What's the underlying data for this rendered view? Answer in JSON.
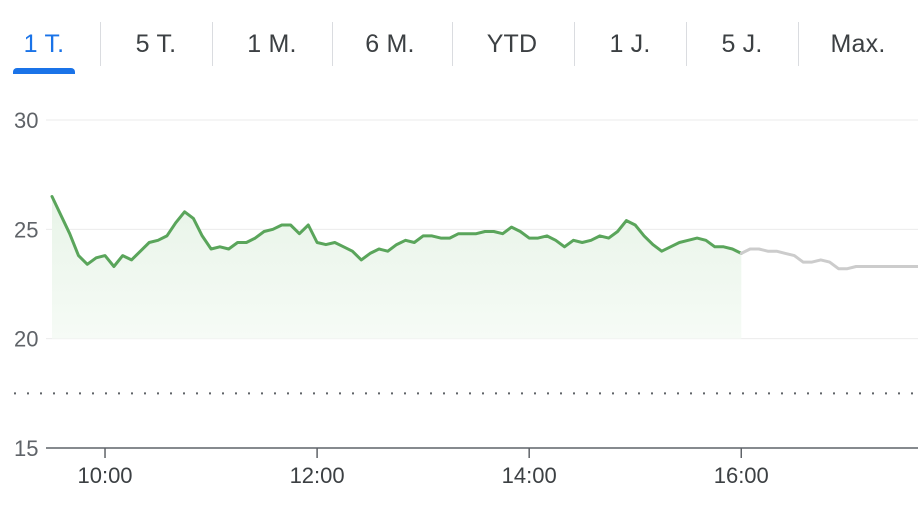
{
  "tabs": [
    {
      "label": "1 T.",
      "active": true
    },
    {
      "label": "5 T.",
      "active": false
    },
    {
      "label": "1 M.",
      "active": false
    },
    {
      "label": "6 M.",
      "active": false
    },
    {
      "label": "YTD",
      "active": false
    },
    {
      "label": "1 J.",
      "active": false
    },
    {
      "label": "5 J.",
      "active": false
    },
    {
      "label": "Max.",
      "active": false
    }
  ],
  "colors": {
    "line": "#5aa55b",
    "fill": "#e8f4e8",
    "projection": "#cccccc",
    "accent": "#1a73e8",
    "grid": "#ebebeb",
    "axis": "#5f6368"
  },
  "chart_data": {
    "type": "line",
    "ylim": [
      15,
      30
    ],
    "xlim": [
      "09:30",
      "17:40"
    ],
    "yticks": [
      "30",
      "25",
      "20",
      "15"
    ],
    "xticks": [
      "10:00",
      "12:00",
      "14:00",
      "16:00"
    ],
    "previous_close": 17.5,
    "grid": true,
    "series": [
      {
        "style": "actual",
        "points": [
          [
            "09:30",
            26.5
          ],
          [
            "09:40",
            24.8
          ],
          [
            "09:45",
            23.8
          ],
          [
            "09:50",
            23.4
          ],
          [
            "09:55",
            23.7
          ],
          [
            "10:00",
            23.8
          ],
          [
            "10:05",
            23.3
          ],
          [
            "10:10",
            23.8
          ],
          [
            "10:15",
            23.6
          ],
          [
            "10:20",
            24.0
          ],
          [
            "10:25",
            24.4
          ],
          [
            "10:30",
            24.5
          ],
          [
            "10:35",
            24.7
          ],
          [
            "10:40",
            25.3
          ],
          [
            "10:45",
            25.8
          ],
          [
            "10:50",
            25.5
          ],
          [
            "10:55",
            24.7
          ],
          [
            "11:00",
            24.1
          ],
          [
            "11:05",
            24.2
          ],
          [
            "11:10",
            24.1
          ],
          [
            "11:15",
            24.4
          ],
          [
            "11:20",
            24.4
          ],
          [
            "11:25",
            24.6
          ],
          [
            "11:30",
            24.9
          ],
          [
            "11:35",
            25.0
          ],
          [
            "11:40",
            25.2
          ],
          [
            "11:45",
            25.2
          ],
          [
            "11:50",
            24.8
          ],
          [
            "11:55",
            25.2
          ],
          [
            "12:00",
            24.4
          ],
          [
            "12:05",
            24.3
          ],
          [
            "12:10",
            24.4
          ],
          [
            "12:15",
            24.2
          ],
          [
            "12:20",
            24.0
          ],
          [
            "12:25",
            23.6
          ],
          [
            "12:30",
            23.9
          ],
          [
            "12:35",
            24.1
          ],
          [
            "12:40",
            24.0
          ],
          [
            "12:45",
            24.3
          ],
          [
            "12:50",
            24.5
          ],
          [
            "12:55",
            24.4
          ],
          [
            "13:00",
            24.7
          ],
          [
            "13:05",
            24.7
          ],
          [
            "13:10",
            24.6
          ],
          [
            "13:15",
            24.6
          ],
          [
            "13:20",
            24.8
          ],
          [
            "13:25",
            24.8
          ],
          [
            "13:30",
            24.8
          ],
          [
            "13:35",
            24.9
          ],
          [
            "13:40",
            24.9
          ],
          [
            "13:45",
            24.8
          ],
          [
            "13:50",
            25.1
          ],
          [
            "13:55",
            24.9
          ],
          [
            "14:00",
            24.6
          ],
          [
            "14:05",
            24.6
          ],
          [
            "14:10",
            24.7
          ],
          [
            "14:15",
            24.5
          ],
          [
            "14:20",
            24.2
          ],
          [
            "14:25",
            24.5
          ],
          [
            "14:30",
            24.4
          ],
          [
            "14:35",
            24.5
          ],
          [
            "14:40",
            24.7
          ],
          [
            "14:45",
            24.6
          ],
          [
            "14:50",
            24.9
          ],
          [
            "14:55",
            25.4
          ],
          [
            "15:00",
            25.2
          ],
          [
            "15:05",
            24.7
          ],
          [
            "15:10",
            24.3
          ],
          [
            "15:15",
            24.0
          ],
          [
            "15:20",
            24.2
          ],
          [
            "15:25",
            24.4
          ],
          [
            "15:30",
            24.5
          ],
          [
            "15:35",
            24.6
          ],
          [
            "15:40",
            24.5
          ],
          [
            "15:45",
            24.2
          ],
          [
            "15:50",
            24.2
          ],
          [
            "15:55",
            24.1
          ],
          [
            "16:00",
            23.9
          ]
        ]
      },
      {
        "style": "projection",
        "points": [
          [
            "16:00",
            23.9
          ],
          [
            "16:05",
            24.1
          ],
          [
            "16:10",
            24.1
          ],
          [
            "16:15",
            24.0
          ],
          [
            "16:20",
            24.0
          ],
          [
            "16:25",
            23.9
          ],
          [
            "16:30",
            23.8
          ],
          [
            "16:35",
            23.5
          ],
          [
            "16:40",
            23.5
          ],
          [
            "16:45",
            23.6
          ],
          [
            "16:50",
            23.5
          ],
          [
            "16:55",
            23.2
          ],
          [
            "17:00",
            23.2
          ],
          [
            "17:05",
            23.3
          ],
          [
            "17:10",
            23.3
          ],
          [
            "17:15",
            23.3
          ],
          [
            "17:20",
            23.3
          ],
          [
            "17:25",
            23.3
          ],
          [
            "17:30",
            23.3
          ],
          [
            "17:35",
            23.3
          ],
          [
            "17:40",
            23.3
          ]
        ]
      }
    ]
  }
}
